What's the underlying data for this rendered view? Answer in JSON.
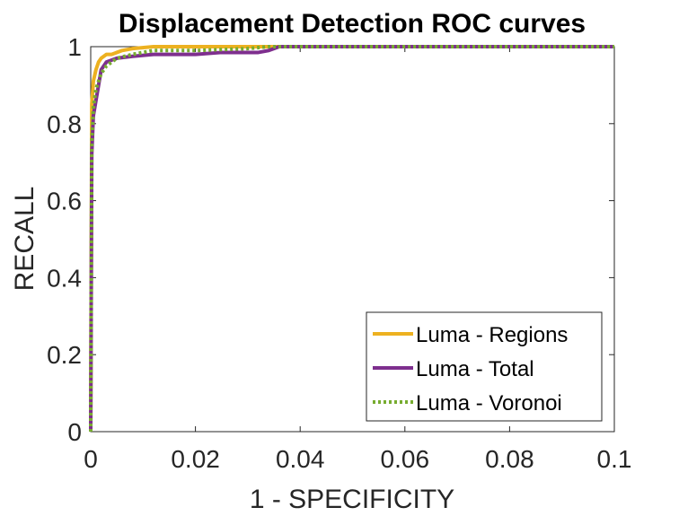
{
  "chart_data": {
    "type": "line",
    "title": "Displacement Detection ROC curves",
    "xlabel": "1 - SPECIFICITY",
    "ylabel": "RECALL",
    "xlim": [
      0,
      0.1
    ],
    "ylim": [
      0,
      1
    ],
    "xticks": [
      0,
      0.02,
      0.04,
      0.06,
      0.08,
      0.1
    ],
    "xtick_labels": [
      "0",
      "0.02",
      "0.04",
      "0.06",
      "0.08",
      "0.1"
    ],
    "yticks": [
      0,
      0.2,
      0.4,
      0.6,
      0.8,
      1
    ],
    "ytick_labels": [
      "0",
      "0.2",
      "0.4",
      "0.6",
      "0.8",
      "1"
    ],
    "grid": false,
    "legend_position": "bottom-right",
    "series": [
      {
        "name": "Luma - Regions",
        "color": "#EDB120",
        "dash": "solid",
        "x": [
          0,
          0.0002,
          0.0005,
          0.001,
          0.0015,
          0.002,
          0.003,
          0.004,
          0.005,
          0.006,
          0.008,
          0.012,
          0.02,
          0.03,
          0.1
        ],
        "y": [
          0,
          0.85,
          0.91,
          0.94,
          0.96,
          0.97,
          0.98,
          0.98,
          0.985,
          0.99,
          0.995,
          1.0,
          1.0,
          1.0,
          1.0
        ]
      },
      {
        "name": "Luma - Total",
        "color": "#7E2F8E",
        "dash": "solid",
        "x": [
          0,
          0.0002,
          0.0005,
          0.001,
          0.0015,
          0.002,
          0.003,
          0.005,
          0.008,
          0.012,
          0.02,
          0.025,
          0.032,
          0.034,
          0.036,
          0.1
        ],
        "y": [
          0,
          0.72,
          0.82,
          0.86,
          0.9,
          0.94,
          0.96,
          0.97,
          0.975,
          0.98,
          0.98,
          0.985,
          0.985,
          0.99,
          1.0,
          1.0
        ]
      },
      {
        "name": "Luma - Voronoi",
        "color": "#77AC30",
        "dash": "dotted",
        "x": [
          0,
          0.0002,
          0.0005,
          0.001,
          0.002,
          0.003,
          0.005,
          0.008,
          0.012,
          0.02,
          0.03,
          0.034,
          0.036,
          0.1
        ],
        "y": [
          0,
          0.75,
          0.84,
          0.89,
          0.93,
          0.95,
          0.97,
          0.98,
          0.99,
          0.99,
          0.995,
          1.0,
          1.0,
          1.0
        ]
      }
    ]
  }
}
